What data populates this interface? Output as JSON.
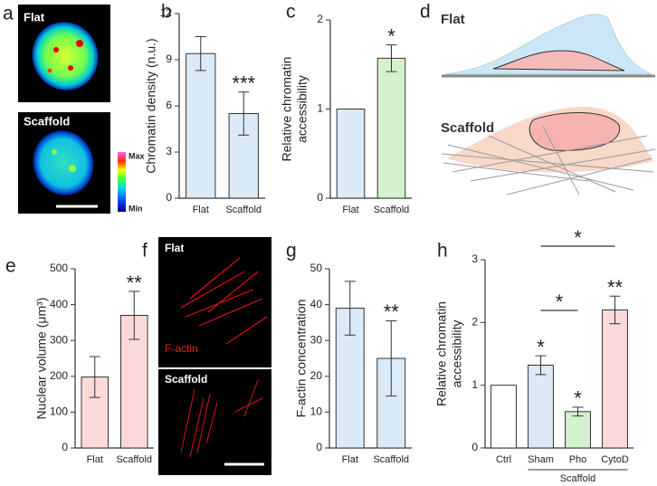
{
  "panel_letters": [
    "a",
    "b",
    "c",
    "d",
    "e",
    "f",
    "g",
    "h"
  ],
  "panel_a": {
    "labels": [
      "Flat",
      "Scaffold"
    ],
    "colorbar": [
      "Max",
      "Min"
    ]
  },
  "panel_d": {
    "labels": [
      "Flat",
      "Scaffold"
    ]
  },
  "panel_f": {
    "labels": [
      "Flat",
      "Scaffold"
    ],
    "stain": "F-actin"
  },
  "chart_data": [
    {
      "type": "bar",
      "ylabel": [
        "Chromatin density (n.u.)"
      ],
      "categories": [
        "Flat",
        "Scaffold"
      ],
      "values": [
        9.4,
        5.5
      ],
      "errors": [
        1.1,
        1.4
      ],
      "colors": [
        "#dbeaf7",
        "#dbeaf7"
      ],
      "significance": [
        null,
        "***"
      ],
      "ylim": [
        0,
        12
      ],
      "yticks": [
        0,
        3,
        6,
        9,
        12
      ]
    },
    {
      "type": "bar",
      "ylabel": [
        "Relative chromatin",
        "accessibility"
      ],
      "categories": [
        "Flat",
        "Scaffold"
      ],
      "values": [
        1,
        1.57
      ],
      "errors": [
        0,
        0.15
      ],
      "colors": [
        "#dbeaf7",
        "#d5f0cf"
      ],
      "significance": [
        null,
        "*"
      ],
      "ylim": [
        0,
        2
      ],
      "yticks": [
        0,
        1,
        2
      ]
    },
    {
      "type": "bar",
      "ylabel": [
        "Nuclear volume (μm³)"
      ],
      "categories": [
        "Flat",
        "Scaffold"
      ],
      "values": [
        198,
        370
      ],
      "errors": [
        57,
        67
      ],
      "colors": [
        "#fbd9d9",
        "#fbd9d9"
      ],
      "significance": [
        null,
        "**"
      ],
      "ylim": [
        0,
        500
      ],
      "yticks": [
        0,
        100,
        200,
        300,
        400,
        500
      ]
    },
    {
      "type": "bar",
      "ylabel": [
        "F-actin concentration"
      ],
      "categories": [
        "Flat",
        "Scaffold"
      ],
      "values": [
        39,
        25
      ],
      "errors": [
        7.5,
        10.5
      ],
      "colors": [
        "#dbeaf7",
        "#dbeaf7"
      ],
      "significance": [
        null,
        "**"
      ],
      "ylim": [
        0,
        50
      ],
      "yticks": [
        0,
        10,
        20,
        30,
        40,
        50
      ]
    },
    {
      "type": "bar",
      "ylabel": [
        "Relative chromatin",
        "accessibility"
      ],
      "categories": [
        "Ctrl",
        "Sham",
        "Pho",
        "CytoD"
      ],
      "values": [
        1,
        1.32,
        0.58,
        2.2
      ],
      "errors": [
        0,
        0.15,
        0.07,
        0.22
      ],
      "colors": [
        "#ffffff",
        "#dbeaf7",
        "#d5f0cf",
        "#fbd9d9"
      ],
      "significance": [
        null,
        "*",
        "*",
        "**"
      ],
      "ylim": [
        0,
        3
      ],
      "yticks": [
        0,
        1,
        2,
        3
      ],
      "comparisons": [
        {
          "pair": [
            1,
            2
          ],
          "text": "*"
        },
        {
          "pair": [
            1,
            3
          ],
          "text": "*"
        }
      ],
      "group": {
        "label": "Scaffold",
        "members": [
          1,
          3
        ]
      }
    }
  ]
}
